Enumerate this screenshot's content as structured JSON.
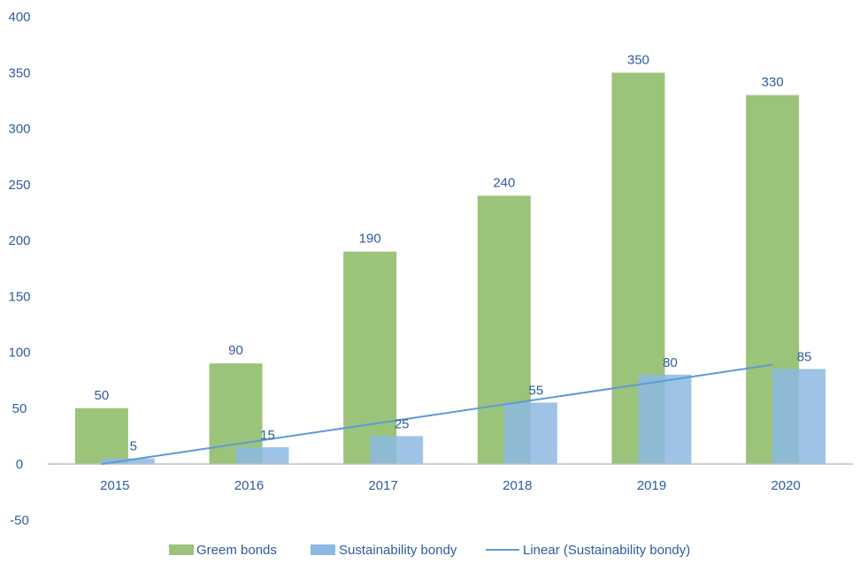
{
  "chart_data": {
    "type": "bar",
    "categories": [
      "2015",
      "2016",
      "2017",
      "2018",
      "2019",
      "2020"
    ],
    "series": [
      {
        "name": "Greem bonds",
        "values": [
          50,
          90,
          190,
          240,
          350,
          330
        ],
        "color": "#9bc37a"
      },
      {
        "name": "Sustainability bondy",
        "values": [
          5,
          15,
          25,
          55,
          80,
          85
        ],
        "color": "#8db8e3"
      }
    ],
    "trendline": {
      "name": "Linear (Sustainability bondy)",
      "type": "linear",
      "of_series": "Sustainability bondy",
      "color": "#5b9bd5"
    },
    "ylim": [
      -50,
      400
    ],
    "yticks": [
      -50,
      0,
      50,
      100,
      150,
      200,
      250,
      300,
      350,
      400
    ],
    "grid": false,
    "legend_position": "bottom",
    "data_labels": true,
    "label_color": "#2e5c9e",
    "axis_color": "#bfbfbf"
  }
}
